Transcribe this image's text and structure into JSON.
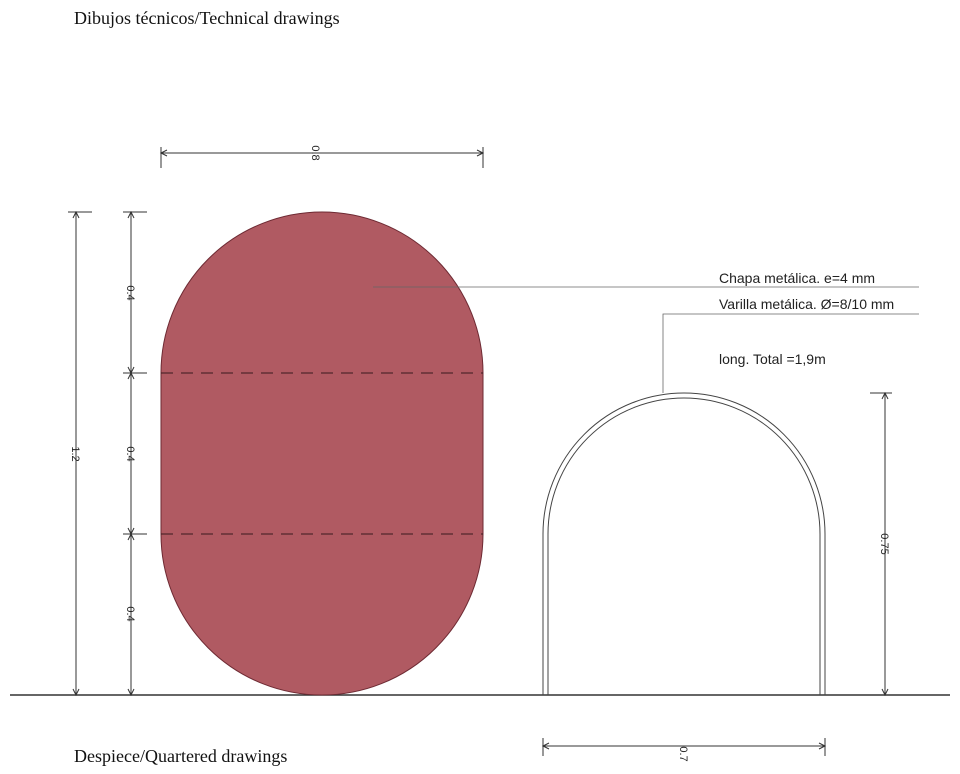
{
  "title": "Dibujos técnicos/Technical drawings",
  "footer_title": "Despiece/Quartered drawings",
  "colors": {
    "panel_fill": "#b05a62",
    "panel_stroke": "#6e2a33",
    "line": "#333333",
    "background": "#ffffff"
  },
  "dimensions": {
    "panel_width": "0.8",
    "total_height": "1.2",
    "segment_top": "0.4",
    "segment_middle": "0.4",
    "segment_bottom": "0.4",
    "arch_height": "0.75",
    "arch_width": "0.7"
  },
  "annotations": {
    "sheet": "Chapa metálica. e=4 mm",
    "rod": "Varilla metálica. Ø=8/10 mm",
    "length": "long. Total =1,9m"
  }
}
